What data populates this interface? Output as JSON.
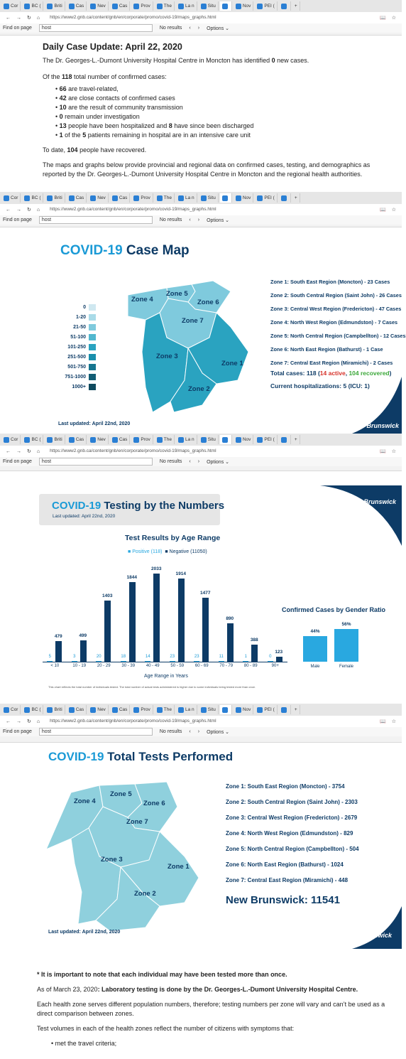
{
  "browser": {
    "tabs": [
      "Cor",
      "BC (",
      "Briti",
      "Cas",
      "Nev",
      "Cas",
      "Prov",
      "The",
      "La n",
      "Situ",
      "",
      "Nov",
      "PEI (",
      ""
    ],
    "url1": "https://www2.gnb.ca/content/gnb/en/corporate/promo/covid-19/maps_graphs.html",
    "url2": "https://www2.gnb.ca/content/gnb/en/corporate/promo/covid-19/maps_graphs.html",
    "find_label": "Find on page",
    "find_value": "host",
    "no_results": "No results",
    "options": "Options"
  },
  "update": {
    "title": "Daily Case Update: April 22, 2020",
    "p1a": "The Dr. Georges-L.-Dumont University Hospital Centre in Moncton has identified ",
    "p1b": "0",
    "p1c": " new cases.",
    "p2a": "Of the ",
    "p2b": "118",
    "p2c": " total number of confirmed cases:",
    "bullets": [
      {
        "b": "66",
        "t": " are travel-related,"
      },
      {
        "b": "42",
        "t": " are close contacts of confirmed cases"
      },
      {
        "b": "10",
        "t": " are the result of community transmission"
      },
      {
        "b": "0",
        "t": " remain under investigation"
      },
      {
        "b": "13",
        "t": " people have been hospitalized and ",
        "b2": "8",
        "t2": " have since been discharged"
      },
      {
        "b": "1",
        "t": " of the ",
        "b2": "5",
        "t2": " patients remaining in hospital are in an intensive care unit"
      }
    ],
    "p3a": "To date, ",
    "p3b": "104",
    "p3c": " people have recovered.",
    "p4": "The maps and graphs below provide provincial and regional data on confirmed cases, testing, and demographics as reported by the Dr. Georges-L.-Dumont University Hospital Centre in Moncton and the regional health authorities."
  },
  "casemap": {
    "title1": "COVID-19",
    "title2": " Case Map",
    "legend": [
      "0",
      "1-20",
      "21-50",
      "51-100",
      "101-250",
      "251-500",
      "501-750",
      "751-1000",
      "1000+"
    ],
    "legend_colors": [
      "#cfe8f0",
      "#a9dbe8",
      "#7fcadd",
      "#52b8cf",
      "#2aa3c0",
      "#1a8fac",
      "#167690",
      "#125e75",
      "#0f4a5e"
    ],
    "zones": [
      "Zone 1: South East Region (Moncton) - 23 Cases",
      "Zone 2: South Central Region (Saint John) - 26 Cases",
      "Zone 3: Central West Region (Fredericton) - 47 Cases",
      "Zone 4: North West Region (Edmundston) - 7 Cases",
      "Zone 5: North Central Region (Campbellton) - 12 Cases",
      "Zone 6: North East Region (Bathurst) - 1 Case",
      "Zone 7: Central East Region (Miramichi) - 2 Cases"
    ],
    "total_a": "Total cases: 118 (",
    "total_b": "14 active",
    "total_c": ", ",
    "total_d": "104 recovered",
    "total_e": ")",
    "hosp": "Current hospitalizations: 5 (ICU: 1)",
    "updated": "Last updated: April 22nd, 2020",
    "logo": "Brunswick",
    "map_labels": [
      "Zone 4",
      "Zone 5",
      "Zone 6",
      "Zone 7",
      "Zone 3",
      "Zone 1",
      "Zone 2"
    ]
  },
  "testing": {
    "title1": "COVID-19",
    "title2": " Testing by the Numbers",
    "sub": "Last updated: April 22nd, 2020",
    "chart_title": "Test Results by Age Range",
    "legend_pos": "Positive (118)",
    "legend_neg": "Negative (11050)",
    "xlabel": "Age Range in Years",
    "footnote": "This chart reflects the total number of individuals tested. The total number of actual tests administered is higher due to some individuals being tested more than once.",
    "gender_title": "Confirmed Cases by Gender Ratio",
    "logo": "Brunswick"
  },
  "chart_data": [
    {
      "type": "bar",
      "title": "Test Results by Age Range",
      "xlabel": "Age Range in Years",
      "categories": [
        "< 10",
        "10 - 19",
        "20 - 29",
        "30 - 39",
        "40 - 49",
        "50 - 59",
        "60 - 69",
        "70 - 79",
        "80 - 89",
        "90+"
      ],
      "series": [
        {
          "name": "Positive (118)",
          "values": [
            5,
            3,
            20,
            18,
            14,
            23,
            23,
            11,
            1,
            0
          ],
          "color": "#29a8e0"
        },
        {
          "name": "Negative (11050)",
          "values": [
            479,
            499,
            1403,
            1844,
            2033,
            1914,
            1477,
            890,
            388,
            123
          ],
          "color": "#0d3b66"
        }
      ],
      "ylim": [
        0,
        2100
      ]
    },
    {
      "type": "bar",
      "title": "Confirmed Cases by Gender Ratio",
      "categories": [
        "Male",
        "Female"
      ],
      "values": [
        44,
        56
      ],
      "value_labels": [
        "44%",
        "56%"
      ],
      "ylim": [
        0,
        60
      ],
      "color": "#29a8e0"
    }
  ],
  "tests": {
    "title1": "COVID-19",
    "title2": " Total Tests Performed",
    "zones": [
      "Zone 1: South East Region (Moncton) - 3754",
      "Zone 2: South Central Region (Saint John) - 2303",
      "Zone 3: Central West Region (Fredericton) - 2679",
      "Zone 4: North West Region (Edmundston) - 829",
      "Zone 5: North Central Region (Campbellton) - 504",
      "Zone 6: North East Region (Bathurst) - 1024",
      "Zone 7: Central East Region (Miramichi) - 448"
    ],
    "nb": "New Brunswick: 11541",
    "updated": "Last updated: April 22nd, 2020",
    "logo": "Brunswick",
    "map_labels": [
      "Zone 4",
      "Zone 5",
      "Zone 6",
      "Zone 7",
      "Zone 3",
      "Zone 1",
      "Zone 2"
    ]
  },
  "notes": {
    "n1": "* It is important to note that each individual may have been tested more than once.",
    "n2a": "As of March 23, 2020",
    "n2b": ": Laboratory testing is done by the Dr. Georges-L.-Dumont University Hospital Centre.",
    "n3": "Each health zone serves different population numbers, therefore; testing numbers per zone will vary and can’t be used as a direct comparison between zones.",
    "n4": "Test volumes in each of the health zones reflect the number of citizens with symptoms that:",
    "n5": "met the travel criteria;"
  }
}
